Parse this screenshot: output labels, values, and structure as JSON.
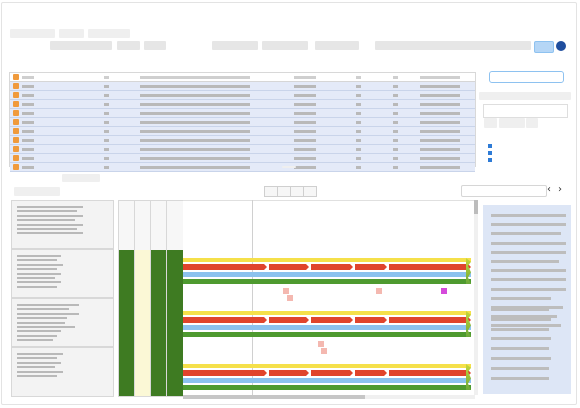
{
  "header": {
    "title": "",
    "nav_items": [
      "",
      "",
      "",
      "",
      ""
    ],
    "action_label": ""
  },
  "records_table": {
    "columns": [
      "",
      "",
      "",
      "",
      "",
      "",
      ""
    ],
    "rows": [
      [
        "",
        "",
        "",
        "",
        "",
        "",
        ""
      ],
      [
        "",
        "",
        "",
        "",
        "",
        "",
        ""
      ],
      [
        "",
        "",
        "",
        "",
        "",
        "",
        ""
      ],
      [
        "",
        "",
        "",
        "",
        "",
        "",
        ""
      ],
      [
        "",
        "",
        "",
        "",
        "",
        "",
        ""
      ],
      [
        "",
        "",
        "",
        "",
        "",
        "",
        ""
      ],
      [
        "",
        "",
        "",
        "",
        "",
        "",
        ""
      ],
      [
        "",
        "",
        "",
        "",
        "",
        "",
        ""
      ],
      [
        "",
        "",
        "",
        "",
        "",
        "",
        ""
      ],
      [
        "",
        "",
        "",
        "",
        "",
        "",
        ""
      ]
    ]
  },
  "right_panel": {
    "search_placeholder": "",
    "filter_placeholder": ""
  },
  "timeline": {
    "tab_label": "",
    "search_placeholder": "",
    "nav": {
      "prev_icon": "chevron-left-icon",
      "next_icon": "chevron-right-icon",
      "prev_glyph": "‹",
      "next_glyph": "›"
    },
    "lanes": [
      {
        "status_colors": [
          "#3e7b22",
          "#fbf8d6",
          "#3e7b22",
          "#3e7b22"
        ]
      },
      {
        "status_colors": [
          "#3e7b22",
          "#fbf8d6",
          "#3e7b22",
          "#3e7b22"
        ]
      },
      {
        "status_colors": [
          "#3e7b22",
          "#fbf8d6",
          "#3e7b22",
          "#3e7b22"
        ]
      }
    ]
  },
  "colors": {
    "accent": "#2e7bd6",
    "header_button": "#b5d6f6",
    "header_dot": "#1f4e9e",
    "row_highlight": "#e4eaf8",
    "checkbox": "#f09a3c",
    "bar_yellow": "#f5e04a",
    "bar_red": "#e0442c",
    "bar_blue": "#8cc2ee",
    "bar_green": "#4e9a2f",
    "marker_pink": "#f4b8b0",
    "marker_magenta": "#d54adb",
    "detail_panel": "#dde6f6"
  }
}
